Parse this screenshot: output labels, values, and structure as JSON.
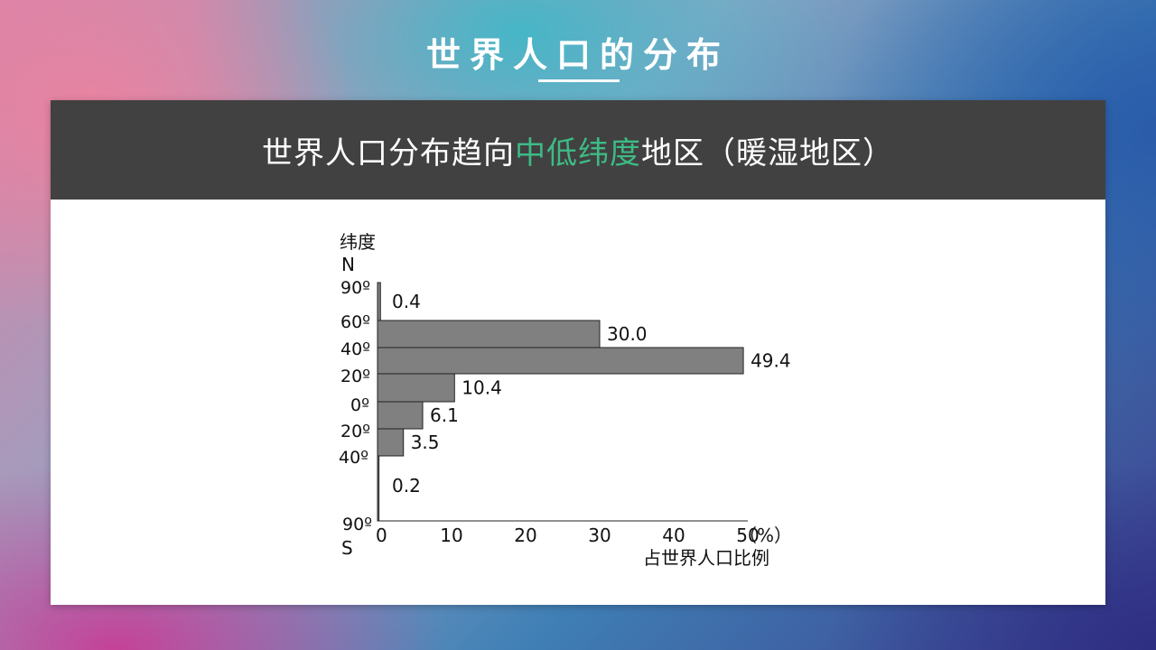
{
  "slide": {
    "title": "世界人口的分布"
  },
  "header": {
    "text_before": "世界人口分布趋向",
    "text_accent": "中低纬度",
    "text_after": "地区（暖湿地区）"
  },
  "colors": {
    "accent": "#3dbb85",
    "header_bg": "#414141",
    "bar_fill": "#808080",
    "bar_stroke": "#222222"
  },
  "chart_data": {
    "type": "bar",
    "orientation": "horizontal",
    "ylabel": "纬度",
    "ylabel_top": "N",
    "ylabel_bottom": "S",
    "xlabel": "占世界人口比例",
    "xunit": "（%）",
    "xlim": [
      0,
      50
    ],
    "x_ticks": [
      "0",
      "10",
      "20",
      "30",
      "40",
      "50"
    ],
    "y_ticks": [
      "90º",
      "60º",
      "40º",
      "20º",
      "0º",
      "20º",
      "40º",
      "90º"
    ],
    "bands": [
      {
        "from": "90ºN",
        "to": "60ºN",
        "value": 0.4,
        "label": "0.4"
      },
      {
        "from": "60ºN",
        "to": "40ºN",
        "value": 30.0,
        "label": "30.0"
      },
      {
        "from": "40ºN",
        "to": "20ºN",
        "value": 49.4,
        "label": "49.4"
      },
      {
        "from": "20ºN",
        "to": "0º",
        "value": 10.4,
        "label": "10.4"
      },
      {
        "from": "0º",
        "to": "20ºS",
        "value": 6.1,
        "label": "6.1"
      },
      {
        "from": "20ºS",
        "to": "40ºS",
        "value": 3.5,
        "label": "3.5"
      },
      {
        "from": "40ºS",
        "to": "90ºS",
        "value": 0.2,
        "label": "0.2"
      }
    ]
  }
}
